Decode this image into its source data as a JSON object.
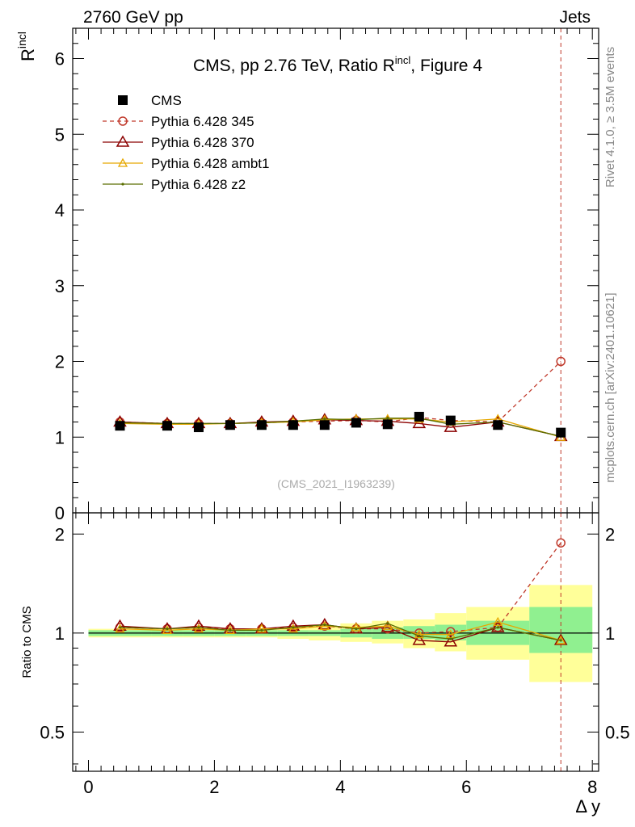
{
  "header": {
    "left": "2760 GeV pp",
    "right": "Jets"
  },
  "side_labels": {
    "rivet": "Rivet 4.1.0, ≥ 3.5M events",
    "mcplots": "mcplots.cern.ch [arXiv:2401.10621]"
  },
  "colors": {
    "s345": "#c0392b",
    "s370": "#8b0000",
    "ambt1": "#e6a800",
    "z2": "#5a6e00",
    "data": "#000000",
    "band_inner": "#90f090",
    "band_outer": "#ffff99"
  },
  "chart_data": [
    {
      "type": "scatter",
      "panel": "main",
      "title_prefix": "CMS, pp 2.76 TeV, Ratio R",
      "title_sup": "incl",
      "title_suffix": ", Figure 4",
      "ylabel": "R",
      "ylabel_sup": "incl",
      "watermark": "(CMS_2021_I1963239)",
      "xlim": [
        -0.25,
        8.1
      ],
      "ylim": [
        0,
        6.4
      ],
      "yticks": [
        0,
        1,
        2,
        3,
        4,
        5,
        6
      ],
      "x": [
        0.5,
        1.25,
        1.75,
        2.25,
        2.75,
        3.25,
        3.75,
        4.25,
        4.75,
        5.25,
        5.75,
        6.5,
        7.5
      ],
      "series": [
        {
          "name": "CMS",
          "key": "data",
          "values": [
            1.15,
            1.15,
            1.13,
            1.16,
            1.16,
            1.16,
            1.16,
            1.19,
            1.17,
            1.27,
            1.22,
            1.16,
            1.06
          ]
        },
        {
          "name": "Pythia 6.428 345",
          "key": "s345",
          "values": [
            1.2,
            1.18,
            1.18,
            1.18,
            1.19,
            1.2,
            1.21,
            1.22,
            1.2,
            1.26,
            1.22,
            1.2,
            2.0
          ]
        },
        {
          "name": "Pythia 6.428 370",
          "key": "s370",
          "values": [
            1.2,
            1.18,
            1.18,
            1.18,
            1.2,
            1.21,
            1.23,
            1.22,
            1.21,
            1.18,
            1.13,
            1.2,
            1.01
          ]
        },
        {
          "name": "Pythia 6.428 ambt1",
          "key": "ambt1",
          "values": [
            1.18,
            1.17,
            1.17,
            1.18,
            1.19,
            1.2,
            1.23,
            1.24,
            1.24,
            1.24,
            1.2,
            1.24,
            1.0
          ]
        },
        {
          "name": "Pythia 6.428 z2",
          "key": "z2",
          "values": [
            1.19,
            1.18,
            1.18,
            1.18,
            1.19,
            1.21,
            1.24,
            1.23,
            1.25,
            1.25,
            1.17,
            1.2,
            1.01
          ]
        }
      ]
    },
    {
      "type": "scatter",
      "panel": "ratio",
      "ylabel": "Ratio to CMS",
      "xlabel": "Δ y",
      "xlim": [
        -0.25,
        8.1
      ],
      "ylim": [
        0.38,
        2.32
      ],
      "yscale": "log",
      "yticks": [
        0.5,
        1,
        2
      ],
      "xticks": [
        0,
        2,
        4,
        6,
        8
      ],
      "band_edges": [
        0,
        1,
        1.5,
        2,
        2.5,
        3,
        3.5,
        4,
        4.5,
        5,
        5.5,
        6,
        7,
        8
      ],
      "band_inner": [
        [
          0.98,
          1.02
        ],
        [
          0.98,
          1.02
        ],
        [
          0.98,
          1.02
        ],
        [
          0.98,
          1.02
        ],
        [
          0.98,
          1.02
        ],
        [
          0.98,
          1.02
        ],
        [
          0.98,
          1.02
        ],
        [
          0.97,
          1.03
        ],
        [
          0.96,
          1.04
        ],
        [
          0.96,
          1.05
        ],
        [
          0.95,
          1.06
        ],
        [
          0.92,
          1.09
        ],
        [
          0.87,
          1.2
        ]
      ],
      "band_outer": [
        [
          0.97,
          1.03
        ],
        [
          0.97,
          1.03
        ],
        [
          0.97,
          1.03
        ],
        [
          0.97,
          1.03
        ],
        [
          0.97,
          1.03
        ],
        [
          0.96,
          1.04
        ],
        [
          0.95,
          1.05
        ],
        [
          0.94,
          1.07
        ],
        [
          0.93,
          1.09
        ],
        [
          0.9,
          1.1
        ],
        [
          0.88,
          1.15
        ],
        [
          0.83,
          1.2
        ],
        [
          0.71,
          1.4
        ]
      ],
      "x": [
        0.5,
        1.25,
        1.75,
        2.25,
        2.75,
        3.25,
        3.75,
        4.25,
        4.75,
        5.25,
        5.75,
        6.5,
        7.5
      ],
      "series": [
        {
          "name": "Pythia 6.428 345",
          "key": "s345",
          "values": [
            1.04,
            1.03,
            1.04,
            1.03,
            1.03,
            1.04,
            1.05,
            1.03,
            1.03,
            1.0,
            1.01,
            1.04,
            1.88
          ]
        },
        {
          "name": "Pythia 6.428 370",
          "key": "s370",
          "values": [
            1.05,
            1.03,
            1.05,
            1.03,
            1.03,
            1.05,
            1.06,
            1.03,
            1.04,
            0.95,
            0.94,
            1.04,
            0.95
          ]
        },
        {
          "name": "Pythia 6.428 ambt1",
          "key": "ambt1",
          "values": [
            1.03,
            1.02,
            1.03,
            1.02,
            1.03,
            1.03,
            1.05,
            1.04,
            1.05,
            0.99,
            0.99,
            1.08,
            0.95
          ]
        },
        {
          "name": "Pythia 6.428 z2",
          "key": "z2",
          "values": [
            1.04,
            1.03,
            1.04,
            1.02,
            1.02,
            1.04,
            1.06,
            1.03,
            1.07,
            0.98,
            0.96,
            1.04,
            0.95
          ]
        }
      ]
    }
  ]
}
